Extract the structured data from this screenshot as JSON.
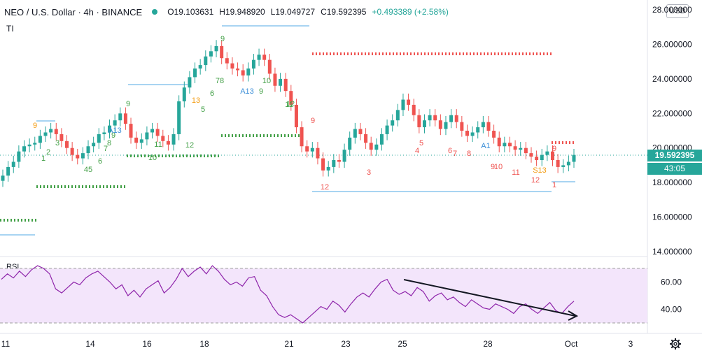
{
  "header": {
    "symbol": "NEO / U.S. Dollar · 4h · BINANCE",
    "open": "O19.103631",
    "high": "H19.948920",
    "low": "L19.049727",
    "close": "C19.592395",
    "change": "+0.493389 (+2.58%)"
  },
  "indicator_label": "TI",
  "rsi_label": "RSI",
  "currency": "USD",
  "last_price": "19.592395",
  "countdown": "43:05",
  "colors": {
    "up": "#26a69a",
    "down": "#ef5350",
    "rsi_line": "#8e24aa",
    "rsi_band": "#f3e5fb",
    "support_line": "#a8d4f2",
    "dots_green": "#43a047",
    "dots_red": "#ef5350"
  },
  "chart_data": [
    {
      "type": "candlestick",
      "ylim": [
        13,
        28
      ],
      "price_axis_ticks": [
        "28.000000",
        "26.000000",
        "24.000000",
        "22.000000",
        "20.000000",
        "18.000000",
        "16.000000",
        "14.000000"
      ],
      "time_axis_ticks": [
        "11",
        "14",
        "16",
        "18",
        "21",
        "23",
        "25",
        "28",
        "Oct",
        "3"
      ],
      "td_sequential_labels": [
        "9",
        "1",
        "2",
        "3",
        "45",
        "6",
        "7",
        "8",
        "9",
        "A13",
        "9",
        "11",
        "12",
        "13",
        "5",
        "6",
        "78",
        "9",
        "A13",
        "9",
        "10",
        "11",
        "12",
        "9",
        "12",
        "3",
        "4",
        "5",
        "6",
        "7",
        "8",
        "A1",
        "9",
        "10",
        "11",
        "12",
        "S13",
        "9",
        "1",
        "10"
      ],
      "close_series": [
        18.4,
        18.9,
        19.2,
        19.8,
        20.1,
        20.2,
        20.3,
        20.7,
        20.9,
        21.1,
        20.8,
        20.4,
        20.0,
        19.6,
        19.4,
        19.7,
        20.1,
        20.3,
        20.8,
        20.9,
        21.3,
        21.6,
        22.0,
        21.4,
        20.6,
        20.3,
        20.5,
        20.9,
        21.1,
        20.7,
        20.4,
        20.2,
        20.8,
        22.7,
        23.5,
        24.1,
        24.6,
        24.8,
        25.3,
        25.6,
        25.9,
        25.2,
        24.9,
        24.6,
        24.5,
        24.2,
        24.6,
        25.1,
        25.4,
        25.1,
        24.3,
        23.6,
        24.0,
        23.3,
        22.5,
        21.2,
        20.1,
        19.8,
        20.0,
        19.4,
        18.7,
        18.9,
        19.3,
        19.2,
        19.9,
        20.6,
        21.1,
        20.8,
        20.3,
        19.9,
        20.2,
        20.8,
        21.3,
        21.6,
        22.2,
        22.8,
        22.5,
        21.9,
        21.2,
        21.6,
        21.9,
        21.6,
        21.1,
        21.5,
        21.9,
        21.5,
        21.0,
        20.7,
        20.9,
        21.2,
        21.5,
        21.0,
        20.6,
        20.1,
        20.3,
        20.1,
        19.9,
        20.0,
        19.7,
        19.5,
        19.3,
        19.6,
        19.8,
        19.3,
        18.9,
        19.0,
        19.2,
        19.6
      ],
      "rsi": {
        "ticks": [
          "60.00",
          "40.00"
        ],
        "upper_band": 70,
        "lower_band": 30,
        "values": [
          62,
          66,
          63,
          68,
          64,
          69,
          72,
          70,
          66,
          55,
          52,
          56,
          60,
          58,
          63,
          66,
          68,
          64,
          60,
          55,
          58,
          50,
          54,
          49,
          55,
          58,
          61,
          52,
          56,
          62,
          70,
          64,
          68,
          71,
          66,
          72,
          68,
          62,
          58,
          60,
          57,
          63,
          64,
          54,
          50,
          42,
          36,
          34,
          36,
          33,
          30,
          34,
          38,
          42,
          40,
          46,
          43,
          38,
          44,
          49,
          52,
          49,
          55,
          60,
          62,
          54,
          51,
          53,
          50,
          56,
          53,
          46,
          50,
          52,
          47,
          49,
          45,
          42,
          47,
          44,
          41,
          40,
          44,
          42,
          40,
          37,
          42,
          44,
          40,
          37,
          41,
          45,
          39,
          37,
          42,
          46
        ],
        "trendline": "downward"
      }
    }
  ]
}
